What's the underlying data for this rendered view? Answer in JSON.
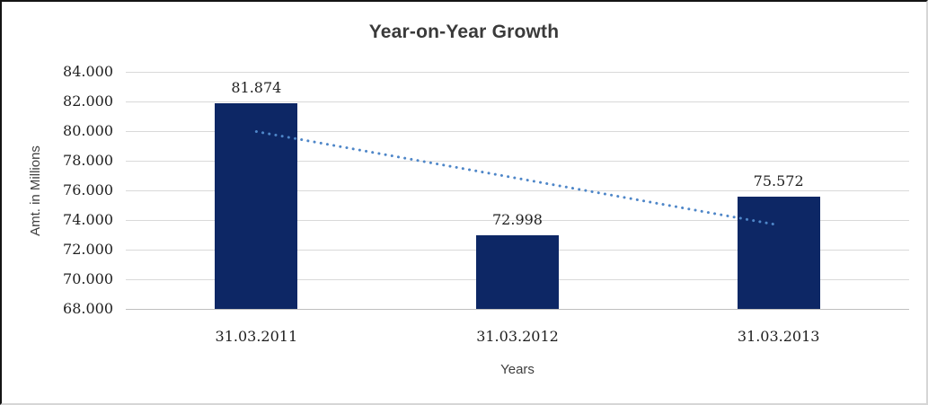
{
  "chart_data": {
    "type": "bar",
    "title": "Year-on-Year Growth",
    "xlabel": "Years",
    "ylabel": "Amt. in Millions",
    "categories": [
      "31.03.2011",
      "31.03.2012",
      "31.03.2013"
    ],
    "values": [
      81.874,
      72.998,
      75.572
    ],
    "value_labels": [
      "81.874",
      "72.998",
      "75.572"
    ],
    "ylim": [
      68,
      84
    ],
    "yticks": [
      {
        "value": 84,
        "label": "84.000"
      },
      {
        "value": 82,
        "label": "82.000"
      },
      {
        "value": 80,
        "label": "80.000"
      },
      {
        "value": 78,
        "label": "78.000"
      },
      {
        "value": 76,
        "label": "76.000"
      },
      {
        "value": 74,
        "label": "74.000"
      },
      {
        "value": 72,
        "label": "72.000"
      },
      {
        "value": 70,
        "label": "70.000"
      },
      {
        "value": 68,
        "label": "68.000"
      }
    ],
    "grid": "horizontal",
    "legend": "none",
    "bar_color": "#0d2765",
    "trendline": {
      "type": "linear",
      "style": "dotted",
      "color": "#4e86c8",
      "start_value": 79.97,
      "end_value": 73.66
    }
  }
}
